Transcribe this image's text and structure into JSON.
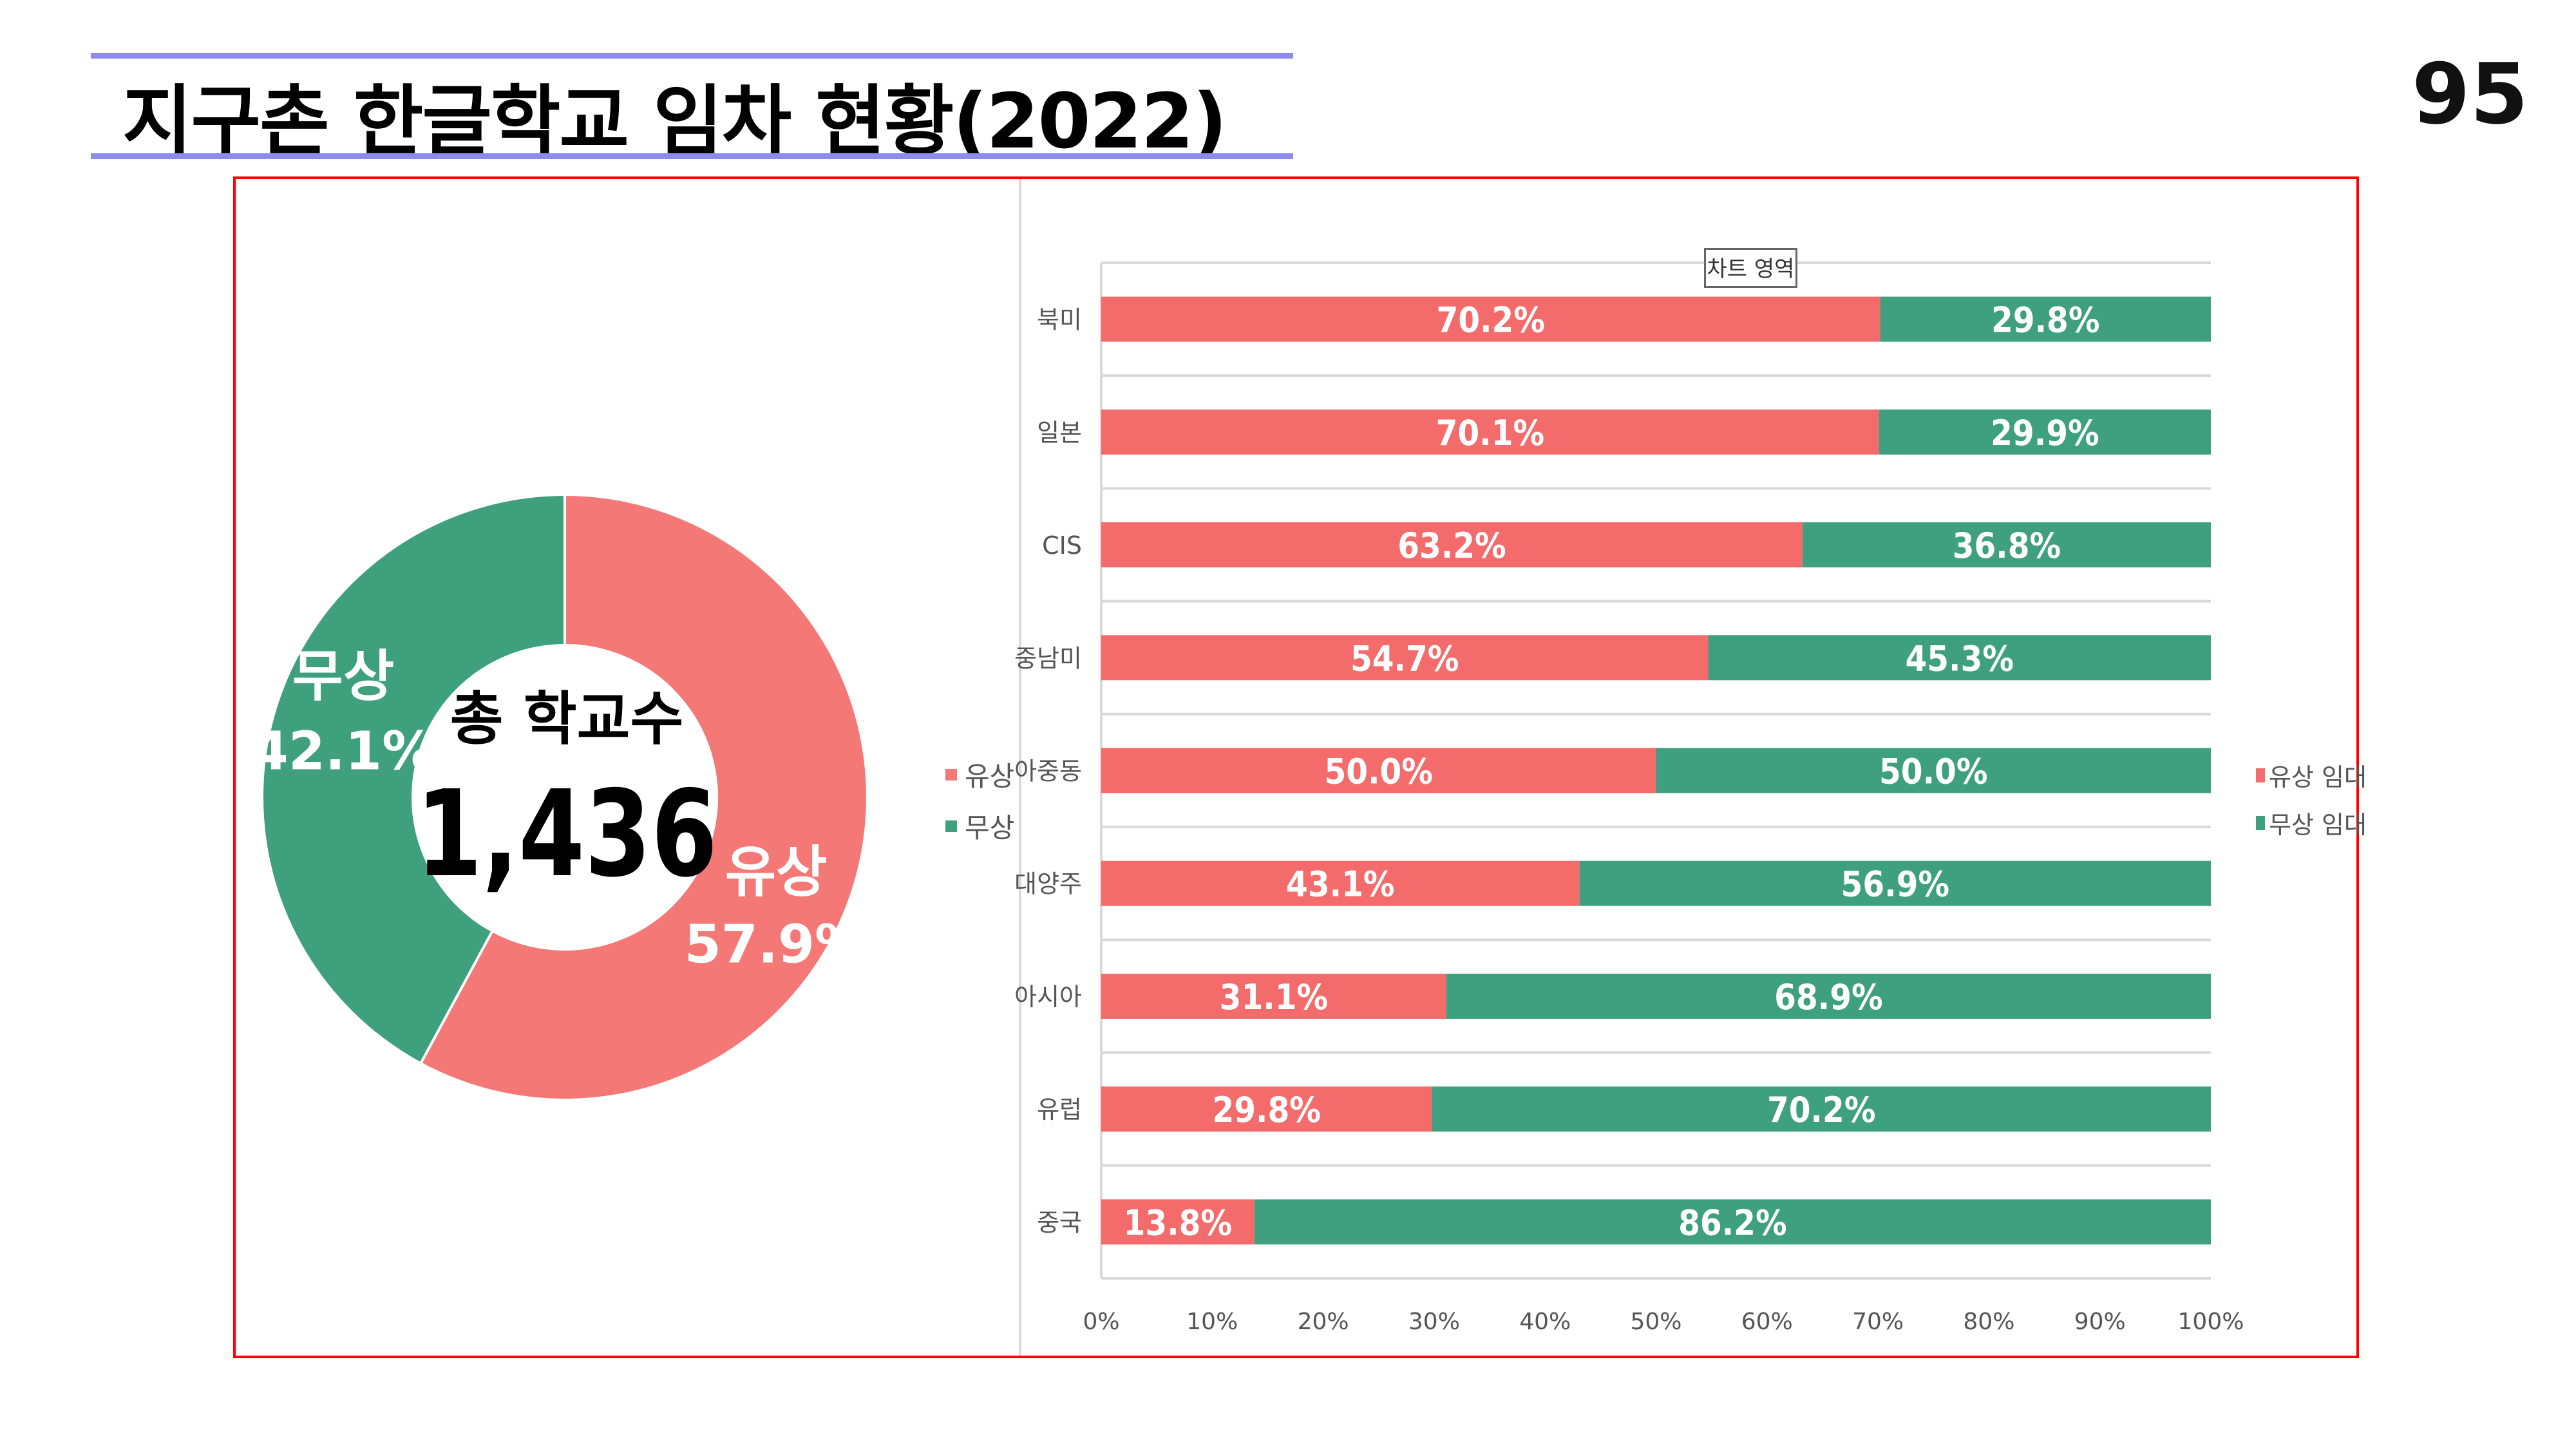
{
  "title": "지구촌 한글학교 임차 현황(2022)",
  "page_number": "95",
  "colors": {
    "paid": "#F46B6B",
    "free": "#3EA07E",
    "donut_paid": "#F47876",
    "donut_free": "#3FA07E",
    "frame": "#FF0000",
    "title_rule": "#8C8CF0"
  },
  "donut": {
    "center_label": "총 학교수",
    "center_value": "1,436",
    "slices": [
      {
        "name": "유상",
        "value": 57.9,
        "label": "57.9%"
      },
      {
        "name": "무상",
        "value": 42.1,
        "label": "42.1%"
      }
    ],
    "legend": [
      "유상",
      "무상"
    ]
  },
  "tooltip": "차트 영역",
  "chart_data": {
    "type": "bar",
    "orientation": "horizontal",
    "stacked": "percent",
    "categories": [
      "북미",
      "일본",
      "CIS",
      "중남미",
      "아중동",
      "대양주",
      "아시아",
      "유럽",
      "중국"
    ],
    "series": [
      {
        "name": "유상 임대",
        "values": [
          70.2,
          70.1,
          63.2,
          54.7,
          50.0,
          43.1,
          31.1,
          29.8,
          13.8
        ]
      },
      {
        "name": "무상 임대",
        "values": [
          29.8,
          29.9,
          36.8,
          45.3,
          50.0,
          56.9,
          68.9,
          70.2,
          86.2
        ]
      }
    ],
    "xlim": [
      0,
      100
    ],
    "xticks": [
      "0%",
      "10%",
      "20%",
      "30%",
      "40%",
      "50%",
      "60%",
      "70%",
      "80%",
      "90%",
      "100%"
    ],
    "legend_position": "right",
    "grid": true
  }
}
